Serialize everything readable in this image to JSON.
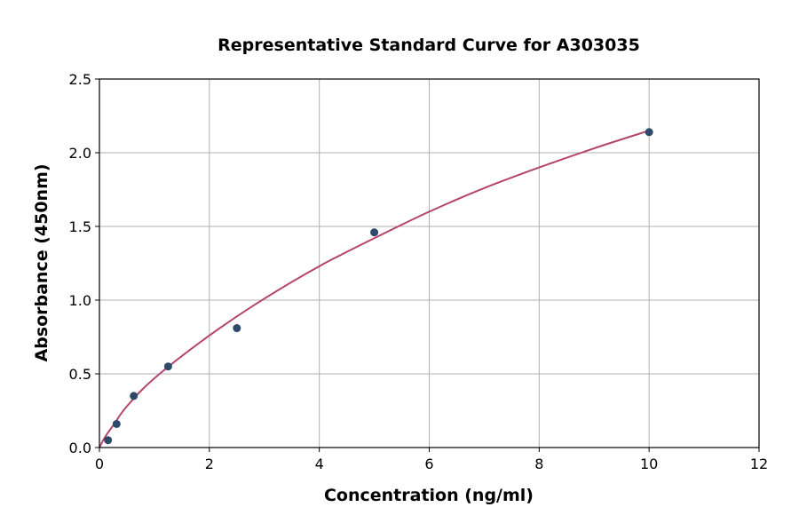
{
  "chart_data": {
    "type": "scatter",
    "title": "Representative Standard Curve for A303035",
    "xlabel": "Concentration (ng/ml)",
    "ylabel": "Absorbance (450nm)",
    "xlim": [
      0,
      12
    ],
    "ylim": [
      0,
      2.5
    ],
    "xticks": [
      "0",
      "2",
      "4",
      "6",
      "8",
      "10",
      "12"
    ],
    "yticks": [
      "0.0",
      "0.5",
      "1.0",
      "1.5",
      "2.0",
      "2.5"
    ],
    "grid": true,
    "points": {
      "x": [
        0.156,
        0.3125,
        0.625,
        1.25,
        2.5,
        5,
        10
      ],
      "y": [
        0.05,
        0.16,
        0.35,
        0.55,
        0.81,
        1.46,
        2.14
      ]
    },
    "fit_curve": {
      "x": [
        0,
        0.1,
        0.25,
        0.5,
        1,
        2,
        3,
        4,
        5,
        6,
        7,
        8,
        9,
        10
      ],
      "y": [
        0.0,
        0.07,
        0.15,
        0.28,
        0.47,
        0.76,
        1.01,
        1.23,
        1.42,
        1.6,
        1.76,
        1.9,
        2.03,
        2.15
      ]
    },
    "colors": {
      "points": "#2e4a6b",
      "curve": "#b5456b",
      "grid": "#b0b0b0"
    }
  }
}
